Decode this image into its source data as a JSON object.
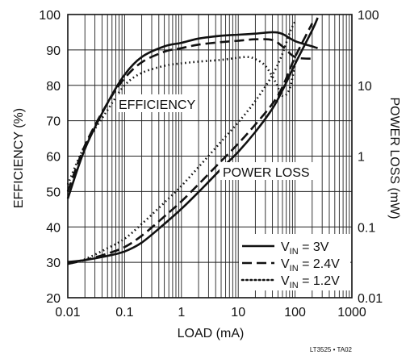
{
  "chart_data": {
    "type": "line",
    "x_scale": "log",
    "xlabel": "LOAD (mA)",
    "ylabel_left": "EFFICIENCY (%)",
    "ylabel_right": "POWER LOSS (mW)",
    "xlim": [
      0.01,
      1000
    ],
    "ylim_left": [
      20,
      100
    ],
    "ylim_right": [
      0.01,
      100
    ],
    "y_right_scale": "log",
    "grid": true,
    "x_ticks": [
      "0.01",
      "0.1",
      "1",
      "10",
      "100",
      "1000"
    ],
    "y_left_ticks": [
      "20",
      "30",
      "40",
      "50",
      "60",
      "70",
      "80",
      "90",
      "100"
    ],
    "y_right_ticks": [
      "0.01",
      "0.1",
      "1",
      "10",
      "100"
    ],
    "annotations": {
      "efficiency": "EFFICIENCY",
      "power_loss": "POWER LOSS"
    },
    "legend_position": "bottom-right",
    "footnote": "LT3525 • TA02",
    "series": [
      {
        "legend_main": "V",
        "legend_sub": "IN",
        "legend_value": "= 3V",
        "style": "solid",
        "efficiency": {
          "x": [
            0.01,
            0.02,
            0.05,
            0.1,
            0.2,
            0.5,
            1,
            2,
            5,
            10,
            20,
            40,
            60,
            100,
            200,
            250
          ],
          "y": [
            48,
            62,
            75,
            83,
            88,
            91,
            92,
            93.2,
            94,
            94.3,
            94.6,
            95,
            94.5,
            92.5,
            91,
            90.5
          ]
        },
        "power_loss": {
          "x": [
            0.01,
            0.02,
            0.05,
            0.1,
            0.2,
            0.5,
            1,
            2,
            5,
            10,
            20,
            40,
            60,
            100,
            200,
            250
          ],
          "y": [
            0.032,
            0.034,
            0.039,
            0.045,
            0.06,
            0.11,
            0.18,
            0.31,
            0.66,
            1.15,
            2.2,
            4.7,
            8.5,
            20,
            60,
            90
          ]
        }
      },
      {
        "legend_main": "V",
        "legend_sub": "IN",
        "legend_value": "= 2.4V",
        "style": "dashed",
        "efficiency": {
          "x": [
            0.01,
            0.02,
            0.05,
            0.1,
            0.2,
            0.5,
            1,
            2,
            5,
            10,
            20,
            40,
            60,
            100,
            200
          ],
          "y": [
            50,
            63,
            75,
            82,
            86.5,
            89.5,
            90.5,
            91.5,
            92.2,
            92.6,
            93,
            92.8,
            91,
            88,
            87.5
          ]
        },
        "power_loss": {
          "x": [
            0.01,
            0.02,
            0.05,
            0.1,
            0.2,
            0.5,
            1,
            2,
            5,
            10,
            20,
            40,
            60,
            100,
            200
          ],
          "y": [
            0.03,
            0.034,
            0.042,
            0.052,
            0.075,
            0.14,
            0.23,
            0.4,
            0.85,
            1.5,
            2.8,
            5.5,
            9.5,
            25,
            75
          ]
        }
      },
      {
        "legend_main": "V",
        "legend_sub": "IN",
        "legend_value": "= 1.2V",
        "style": "dotted",
        "efficiency": {
          "x": [
            0.01,
            0.02,
            0.05,
            0.1,
            0.2,
            0.5,
            1,
            2,
            5,
            10,
            15,
            20,
            30,
            45,
            60,
            80,
            100
          ],
          "y": [
            52,
            63,
            73,
            80,
            83.5,
            85.5,
            86.2,
            86.7,
            87.2,
            87.8,
            88,
            87.4,
            85.5,
            81,
            77,
            79,
            86
          ]
        },
        "power_loss": {
          "x": [
            0.01,
            0.02,
            0.05,
            0.1,
            0.2,
            0.5,
            1,
            2,
            5,
            10,
            20,
            40,
            60,
            80,
            100
          ],
          "y": [
            0.03,
            0.035,
            0.05,
            0.068,
            0.11,
            0.22,
            0.38,
            0.7,
            1.6,
            3,
            6,
            14,
            28,
            55,
            80
          ]
        }
      }
    ]
  }
}
